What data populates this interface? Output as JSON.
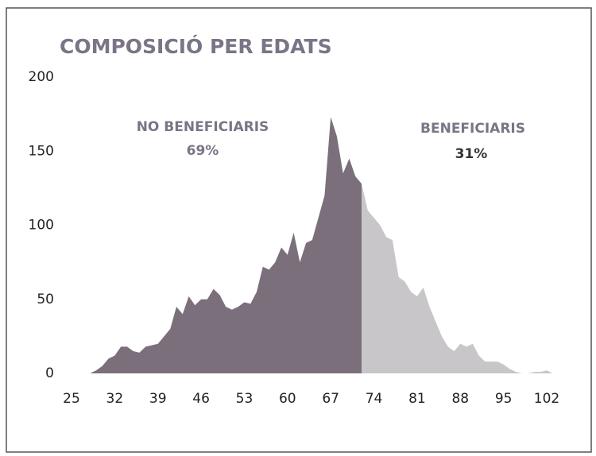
{
  "chart_data": {
    "type": "area",
    "title": "COMPOSICIÓ PER EDATS",
    "x": [
      25,
      26,
      27,
      28,
      29,
      30,
      31,
      32,
      33,
      34,
      35,
      36,
      37,
      38,
      39,
      40,
      41,
      42,
      43,
      44,
      45,
      46,
      47,
      48,
      49,
      50,
      51,
      52,
      53,
      54,
      55,
      56,
      57,
      58,
      59,
      60,
      61,
      62,
      63,
      64,
      65,
      66,
      67,
      68,
      69,
      70,
      71,
      72,
      73,
      74,
      75,
      76,
      77,
      78,
      79,
      80,
      81,
      82,
      83,
      84,
      85,
      86,
      87,
      88,
      89,
      90,
      91,
      92,
      93,
      94,
      95,
      96,
      97,
      98,
      99,
      100,
      101,
      102,
      103
    ],
    "series": [
      {
        "name": "NO BENEFICIARIS",
        "color": "#7b6f7b",
        "values": [
          0,
          0,
          0,
          0,
          2,
          5,
          10,
          12,
          18,
          18,
          15,
          14,
          18,
          19,
          20,
          25,
          30,
          45,
          40,
          52,
          46,
          50,
          50,
          57,
          53,
          45,
          43,
          45,
          48,
          47,
          55,
          72,
          70,
          75,
          85,
          80,
          95,
          75,
          88,
          90,
          105,
          120,
          173,
          160,
          135,
          145,
          133,
          128,
          null,
          null,
          null,
          null,
          null,
          null,
          null,
          null,
          null,
          null,
          null,
          null,
          null,
          null,
          null,
          null,
          null,
          null,
          null,
          null,
          null,
          null,
          null,
          null,
          null,
          null,
          null,
          null,
          null,
          null,
          null
        ]
      },
      {
        "name": "BENEFICIARIS",
        "color": "#c9c6c9",
        "values": [
          null,
          null,
          null,
          null,
          null,
          null,
          null,
          null,
          null,
          null,
          null,
          null,
          null,
          null,
          null,
          null,
          null,
          null,
          null,
          null,
          null,
          null,
          null,
          null,
          null,
          null,
          null,
          null,
          null,
          null,
          null,
          null,
          null,
          null,
          null,
          null,
          null,
          null,
          null,
          null,
          null,
          null,
          null,
          null,
          null,
          null,
          null,
          128,
          110,
          105,
          100,
          92,
          90,
          65,
          62,
          55,
          52,
          58,
          45,
          35,
          25,
          18,
          15,
          20,
          18,
          20,
          12,
          8,
          8,
          8,
          6,
          3,
          1,
          0,
          0,
          1,
          1,
          2,
          0
        ]
      }
    ],
    "annotations": [
      "NO BENEFICIARIS",
      "69%",
      "BENEFICIARIS",
      "31%"
    ],
    "xlim": [
      25,
      102
    ],
    "xticks": [
      25,
      32,
      39,
      46,
      53,
      60,
      67,
      74,
      81,
      88,
      95,
      102
    ],
    "ylim": [
      0,
      200
    ],
    "yticks": [
      0,
      50,
      100,
      150,
      200
    ]
  }
}
